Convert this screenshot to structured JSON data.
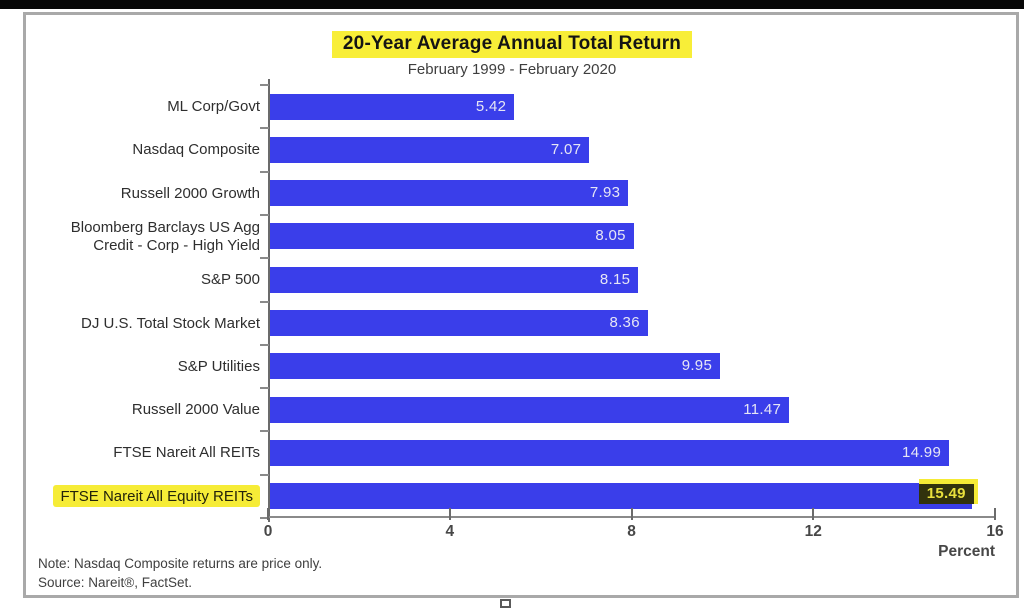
{
  "page": {
    "notes": [
      "Note: Nasdaq Composite returns are price only.",
      "Source: Nareit®, FactSet."
    ]
  },
  "chart_data": {
    "type": "bar",
    "orientation": "horizontal",
    "title": "20-Year Average Annual Total Return",
    "subtitle": "February 1999 - February 2020",
    "xlabel": "Percent",
    "xlim": [
      0,
      16
    ],
    "x_ticks": [
      0,
      4,
      8,
      12,
      16
    ],
    "grid": false,
    "legend": false,
    "categories": [
      "ML Corp/Govt",
      "Nasdaq Composite",
      "Russell 2000 Growth",
      "Bloomberg Barclays US Agg\nCredit - Corp - High Yield",
      "S&P 500",
      "DJ U.S. Total Stock Market",
      "S&P Utilities",
      "Russell 2000 Value",
      "FTSE Nareit All REITs",
      "FTSE Nareit All Equity REITs"
    ],
    "values": [
      5.42,
      7.07,
      7.93,
      8.05,
      8.15,
      8.36,
      9.95,
      11.47,
      14.99,
      15.49
    ],
    "highlight_index": 9,
    "bar_color": "#3a3eea",
    "highlight_color": "#f6ec37",
    "value_label_color": "#e6e6f5",
    "highlight_value_bg": "#31320d",
    "highlight_value_color": "#e9e13c"
  }
}
